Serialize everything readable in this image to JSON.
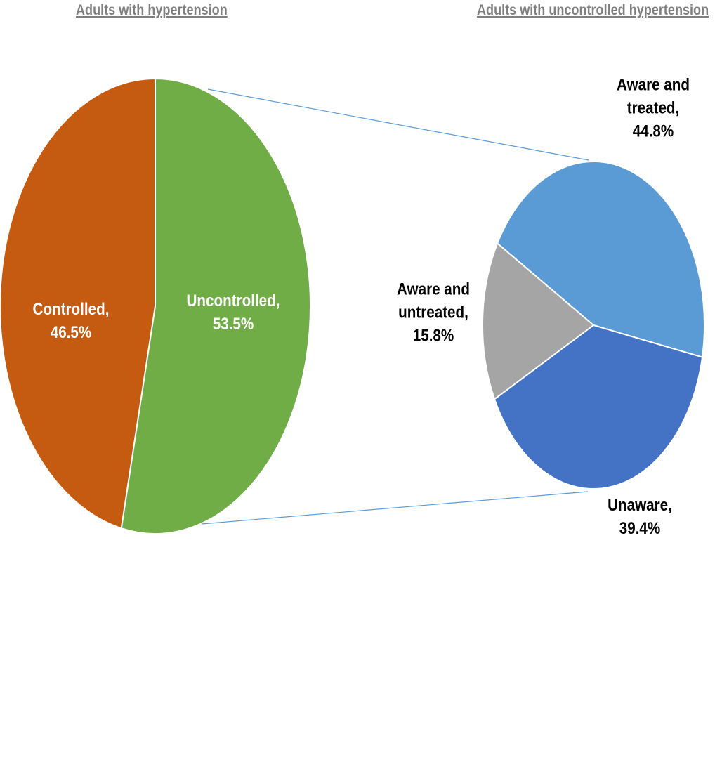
{
  "chart_data": [
    {
      "type": "pie",
      "title": "Adults with hypertension",
      "slices": [
        {
          "name": "Controlled",
          "label": [
            "Controlled,",
            "46.5%"
          ],
          "value": 46.5,
          "color": "#c55a11",
          "label_color": "#ffffff"
        },
        {
          "name": "Uncontrolled",
          "label": [
            "Uncontrolled,",
            "53.5%"
          ],
          "value": 53.5,
          "color": "#70ad47",
          "label_color": "#ffffff"
        }
      ]
    },
    {
      "type": "pie",
      "title": "Adults with uncontrolled hypertension",
      "slices": [
        {
          "name": "Aware and treated",
          "label": [
            "Aware and",
            "treated,",
            "44.8%"
          ],
          "value": 44.8,
          "color": "#5b9bd5",
          "label_color": "#000000"
        },
        {
          "name": "Unaware",
          "label": [
            "Unaware,",
            "39.4%"
          ],
          "value": 39.4,
          "color": "#4472c4",
          "label_color": "#000000"
        },
        {
          "name": "Aware and untreated",
          "label": [
            "Aware and",
            "untreated,",
            "15.8%"
          ],
          "value": 15.8,
          "color": "#a5a5a5",
          "label_color": "#000000"
        }
      ]
    }
  ],
  "connector_color": "#5b9bd5"
}
